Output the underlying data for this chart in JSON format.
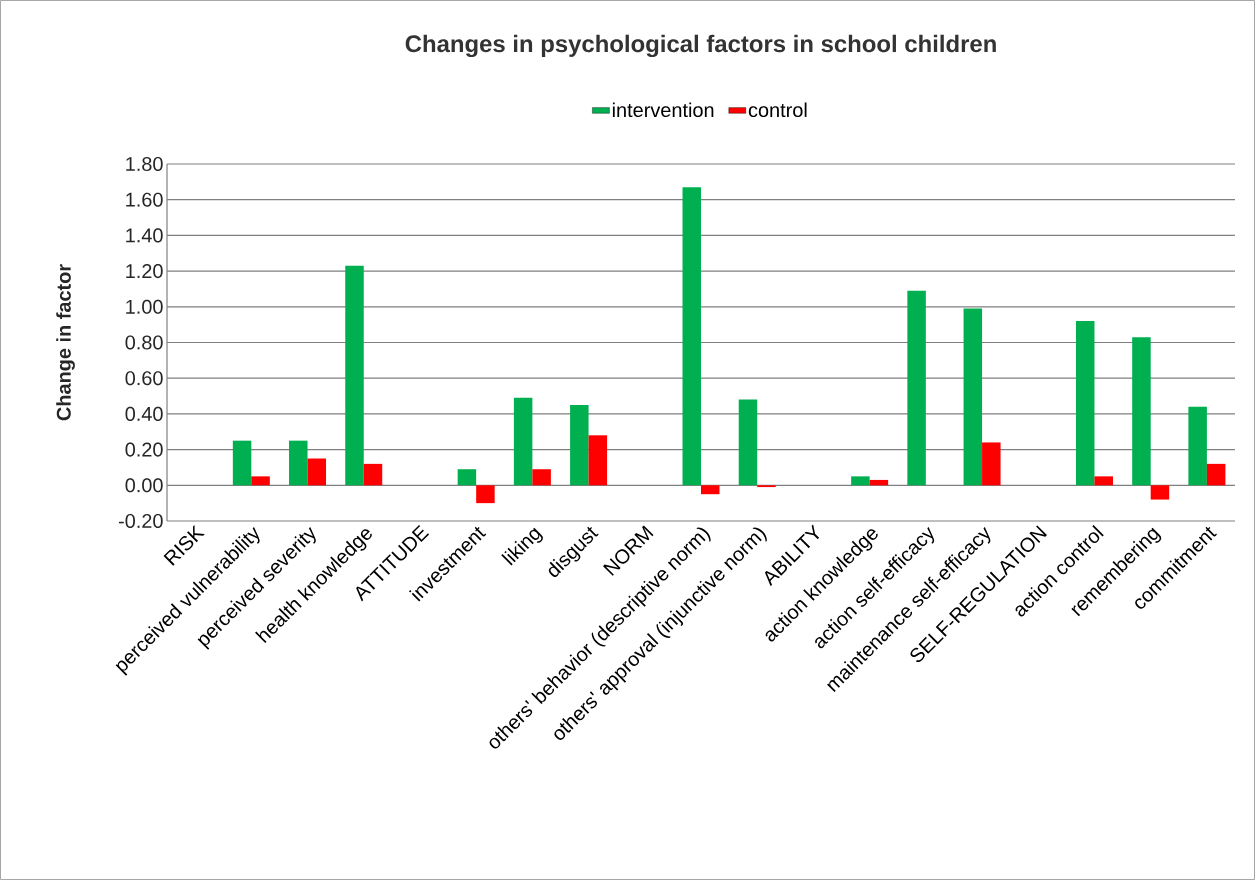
{
  "chart_data": {
    "type": "bar",
    "title": "Changes in psychological factors in school children",
    "ylabel": "Change in factor",
    "categories": [
      "RISK",
      "perceived vulnerability",
      "perceived severity",
      "health knowledge",
      "ATTITUDE",
      "investment",
      "liking",
      "disgust",
      "NORM",
      "others' behavior (descriptive norm)",
      "others' approval (injunctive norm)",
      "ABILITY",
      "action knowledge",
      "action self-efficacy",
      "maintenance self-efficacy",
      "SELF-REGULATION",
      "action control",
      "remembering",
      "commitment"
    ],
    "series": [
      {
        "name": "intervention",
        "color": "#00b050",
        "values": [
          null,
          0.25,
          0.25,
          1.23,
          null,
          0.09,
          0.49,
          0.45,
          null,
          1.67,
          0.48,
          null,
          0.05,
          1.09,
          0.99,
          null,
          0.92,
          0.83,
          0.44
        ]
      },
      {
        "name": "control",
        "color": "#ff0000",
        "values": [
          null,
          0.05,
          0.15,
          0.12,
          null,
          -0.1,
          0.09,
          0.28,
          null,
          -0.05,
          -0.01,
          null,
          0.03,
          null,
          0.24,
          null,
          0.05,
          -0.08,
          0.12
        ]
      }
    ],
    "ylim": [
      -0.2,
      1.8
    ],
    "yticks": [
      {
        "value": -0.2,
        "label": "-0.20"
      },
      {
        "value": 0,
        "label": "0.00"
      },
      {
        "value": 0.2,
        "label": "0.20"
      },
      {
        "value": 0.4,
        "label": "0.40"
      },
      {
        "value": 0.6,
        "label": "0.60"
      },
      {
        "value": 0.8,
        "label": "0.80"
      },
      {
        "value": 1.0,
        "label": "1.00"
      },
      {
        "value": 1.2,
        "label": "1.20"
      },
      {
        "value": 1.4,
        "label": "1.40"
      },
      {
        "value": 1.6,
        "label": "1.60"
      },
      {
        "value": 1.8,
        "label": "1.80"
      }
    ],
    "grid": "y",
    "legend": "top"
  }
}
